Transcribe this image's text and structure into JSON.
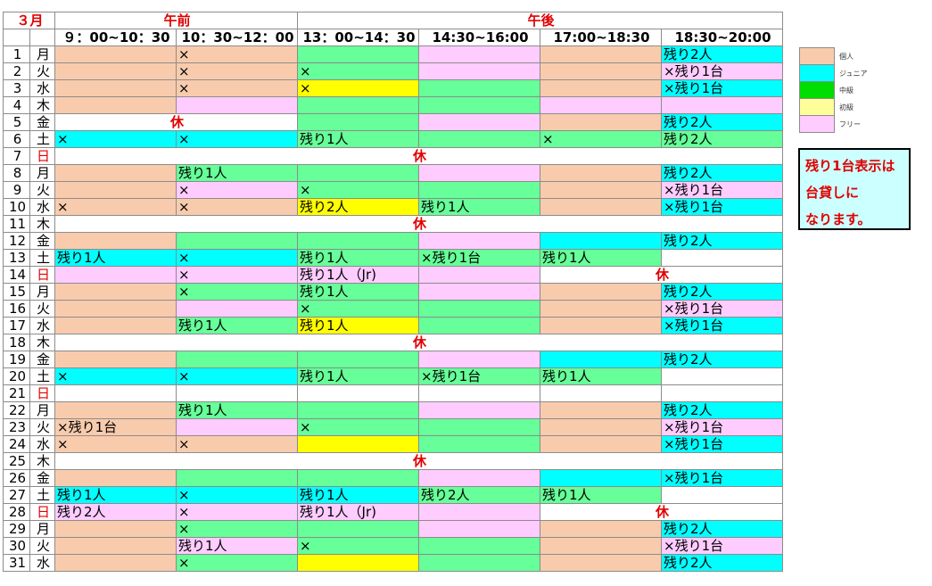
{
  "header": {
    "month": "３月",
    "morning": "午前",
    "afternoon": "午後",
    "slots": [
      "９：00~10：30",
      "10：30~12：00",
      "13：00~14：30",
      "14:30~16:00",
      "17:00~18:30",
      "18:30~20:00"
    ]
  },
  "closed_label": "休",
  "rows": [
    {
      "d": "1",
      "w": "月",
      "c": [
        "k",
        "k:×",
        "c",
        "f",
        "k",
        "j:残り2人"
      ]
    },
    {
      "d": "2",
      "w": "火",
      "c": [
        "k",
        "k:×",
        "c:×",
        "f",
        "k",
        "f:×残り1台"
      ]
    },
    {
      "d": "3",
      "w": "水",
      "c": [
        "k",
        "k:×",
        "y:×",
        "c",
        "k",
        "j:×残り1台"
      ]
    },
    {
      "d": "4",
      "w": "木",
      "c": [
        "k",
        "f",
        "c",
        "c",
        "f",
        "f"
      ]
    },
    {
      "d": "5",
      "w": "金",
      "c": [
        "closed2",
        "c",
        "f",
        "k",
        "j:残り2人"
      ]
    },
    {
      "d": "6",
      "w": "土",
      "c": [
        "j:×",
        "j:×",
        "c:残り1人",
        "c",
        "c:×",
        "c:残り2人"
      ]
    },
    {
      "d": "7",
      "w": "日",
      "sun": true,
      "c": [
        "closed6"
      ]
    },
    {
      "d": "8",
      "w": "月",
      "c": [
        "k",
        "c:残り1人",
        "c",
        "f",
        "k",
        "j:残り2人"
      ]
    },
    {
      "d": "9",
      "w": "火",
      "c": [
        "k",
        "f:×",
        "c:×",
        "c",
        "k",
        "f:×残り1台"
      ]
    },
    {
      "d": "10",
      "w": "水",
      "c": [
        "k:×",
        "k:×",
        "y:残り2人",
        "c:残り1人",
        "k",
        "j:×残り1台"
      ]
    },
    {
      "d": "11",
      "w": "木",
      "c": [
        "closed6"
      ]
    },
    {
      "d": "12",
      "w": "金",
      "c": [
        "k",
        "c",
        "c",
        "f",
        "j",
        "j:残り2人"
      ]
    },
    {
      "d": "13",
      "w": "土",
      "c": [
        "j:残り1人",
        "j:×",
        "c:残り1人",
        "c:×残り1台",
        "c:残り1人",
        "w"
      ]
    },
    {
      "d": "14",
      "w": "日",
      "sun": true,
      "c": [
        "f",
        "f:×",
        "f:残り1人（Jr)",
        "f",
        "closed2"
      ]
    },
    {
      "d": "15",
      "w": "月",
      "c": [
        "k",
        "c:×",
        "c:残り1人",
        "f",
        "k",
        "j:残り2人"
      ]
    },
    {
      "d": "16",
      "w": "火",
      "c": [
        "k",
        "f",
        "c:×",
        "c",
        "k",
        "f:×残り1台"
      ]
    },
    {
      "d": "17",
      "w": "水",
      "c": [
        "k",
        "c:残り1人",
        "y:残り1人",
        "c",
        "k",
        "j:×残り1台"
      ]
    },
    {
      "d": "18",
      "w": "木",
      "c": [
        "closed6"
      ]
    },
    {
      "d": "19",
      "w": "金",
      "c": [
        "k",
        "c",
        "c",
        "f",
        "j",
        "j:残り2人"
      ]
    },
    {
      "d": "20",
      "w": "土",
      "c": [
        "j:×",
        "j:×",
        "c:残り1人",
        "c:×残り1台",
        "c:残り1人",
        "w"
      ]
    },
    {
      "d": "21",
      "w": "日",
      "sun": true,
      "c": [
        "w",
        "w",
        "w",
        "w",
        "w",
        "w"
      ]
    },
    {
      "d": "22",
      "w": "月",
      "c": [
        "k",
        "c:残り1人",
        "c",
        "f",
        "k",
        "j:残り2人"
      ]
    },
    {
      "d": "23",
      "w": "火",
      "c": [
        "k:×残り1台",
        "f",
        "c:×",
        "c",
        "k",
        "f:×残り1台"
      ]
    },
    {
      "d": "24",
      "w": "水",
      "c": [
        "k:×",
        "k:×",
        "y",
        "c",
        "k",
        "j:×残り1台"
      ]
    },
    {
      "d": "25",
      "w": "木",
      "c": [
        "closed6"
      ]
    },
    {
      "d": "26",
      "w": "金",
      "c": [
        "k",
        "c",
        "c",
        "f",
        "j",
        "j:×残り1台"
      ]
    },
    {
      "d": "27",
      "w": "土",
      "c": [
        "j:残り1人",
        "j:×",
        "j:残り1人",
        "c:残り2人",
        "c:残り1人",
        "w"
      ]
    },
    {
      "d": "28",
      "w": "日",
      "sun": true,
      "c": [
        "f:残り2人",
        "f:×",
        "f:残り1人（Jr)",
        "f",
        "closed2"
      ]
    },
    {
      "d": "29",
      "w": "月",
      "c": [
        "k",
        "c:×",
        "c",
        "f",
        "k",
        "j:残り2人"
      ]
    },
    {
      "d": "30",
      "w": "火",
      "c": [
        "k",
        "f:残り1人",
        "c:×",
        "c",
        "k",
        "f:×残り1台"
      ]
    },
    {
      "d": "31",
      "w": "水",
      "c": [
        "k",
        "c:×",
        "y",
        "c",
        "k",
        "j:残り2人"
      ]
    }
  ],
  "legend": [
    {
      "label": "個人",
      "color": "#f8cbad"
    },
    {
      "label": "ジュニア",
      "color": "#00ffff"
    },
    {
      "label": "中級",
      "color": "#00dd00"
    },
    {
      "label": "初級",
      "color": "#ffff99"
    },
    {
      "label": "フリー",
      "color": "#ffccff"
    }
  ],
  "note": [
    "残り1台表示は",
    "台貸しに",
    "なります。"
  ]
}
